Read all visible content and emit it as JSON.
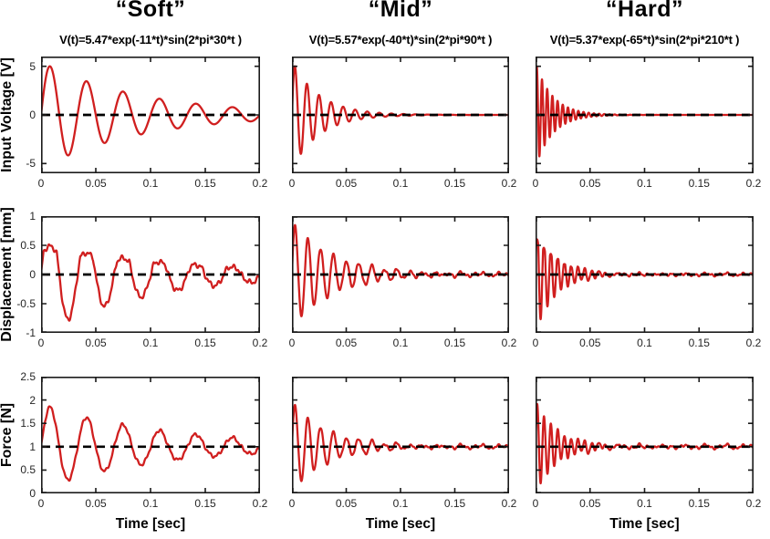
{
  "chart_data": {
    "type": "line",
    "model": "v(t) = baseline + amplitude*exp(-decay*t)*sin(2*pi*frequency_hz*t)",
    "xlabel": "Time [sec]",
    "xlim": [
      0,
      0.2
    ],
    "xticks": [
      0,
      0.05,
      0.1,
      0.15,
      0.2
    ],
    "xtick_labels": [
      "0",
      "0.05",
      "0.1",
      "0.15",
      "0.2"
    ],
    "grid": false,
    "legend": "none",
    "colors": {
      "curve": "#d01f1f",
      "baseline_dash": "#000000",
      "axis_box": "#1a1a1a",
      "tick_text": "#262626"
    },
    "columns": [
      {
        "title": "“Soft”",
        "equation": "V(t)=5.47*exp(-11*t)*sin(2*pi*30*t )"
      },
      {
        "title": "“Mid”",
        "equation": "V(t)=5.57*exp(-40*t)*sin(2*pi*90*t )"
      },
      {
        "title": "“Hard”",
        "equation": "V(t)=5.37*exp(-65*t)*sin(2*pi*210*t )"
      }
    ],
    "rows": [
      {
        "ylabel": "Input Voltage [V]",
        "ylim": [
          -6,
          6
        ],
        "yticks": [
          -5,
          0,
          5
        ],
        "ytick_labels": [
          "-5",
          "0",
          "5"
        ],
        "baseline": 0
      },
      {
        "ylabel": "Displacement [mm]",
        "ylim": [
          -1,
          1
        ],
        "yticks": [
          -1,
          -0.5,
          0,
          0.5,
          1
        ],
        "ytick_labels": [
          "-1",
          "-0.5",
          "0",
          "0.5",
          "1"
        ],
        "baseline": 0
      },
      {
        "ylabel": "Force [N]",
        "ylim": [
          0,
          2.5
        ],
        "yticks": [
          0,
          0.5,
          1,
          1.5,
          2,
          2.5
        ],
        "ytick_labels": [
          "0",
          "0.5",
          "1",
          "1.5",
          "2",
          "2.5"
        ],
        "baseline": 1
      }
    ],
    "cells": [
      [
        {
          "name": "input-voltage-soft",
          "amplitude": 5.47,
          "decay": 11,
          "frequency_hz": 30,
          "noise": 0,
          "ripple": 0
        },
        {
          "name": "input-voltage-mid",
          "amplitude": 5.57,
          "decay": 40,
          "frequency_hz": 90,
          "noise": 0,
          "ripple": 0
        },
        {
          "name": "input-voltage-hard",
          "amplitude": 5.37,
          "decay": 65,
          "frequency_hz": 210,
          "noise": 0,
          "ripple": 0
        }
      ],
      [
        {
          "name": "displacement-soft",
          "amplitude": 1.0,
          "decay": 10,
          "frequency_hz": 30,
          "noise": 0.03,
          "ripple": 0,
          "clip": {
            "level": 0.42,
            "level_decay": 8,
            "softness": 0.15
          }
        },
        {
          "name": "displacement-mid",
          "amplitude": 0.9,
          "decay": 26,
          "frequency_hz": 85,
          "noise": 0.018,
          "ripple": 0.012
        },
        {
          "name": "displacement-hard",
          "amplitude": 0.95,
          "decay": 52,
          "frequency_hz": 160,
          "noise": 0.014,
          "ripple": 0.01,
          "clip": {
            "level": 0.55,
            "level_decay": 40,
            "softness": 0.2
          }
        }
      ],
      [
        {
          "name": "force-soft",
          "amplitude": 0.9,
          "decay": 9,
          "frequency_hz": 30,
          "noise": 0.025,
          "ripple": 0
        },
        {
          "name": "force-mid",
          "amplitude": 0.95,
          "decay": 30,
          "frequency_hz": 85,
          "noise": 0.02,
          "ripple": 0.02
        },
        {
          "name": "force-hard",
          "amplitude": 0.95,
          "decay": 48,
          "frequency_hz": 160,
          "noise": 0.02,
          "ripple": 0.025
        }
      ]
    ]
  }
}
